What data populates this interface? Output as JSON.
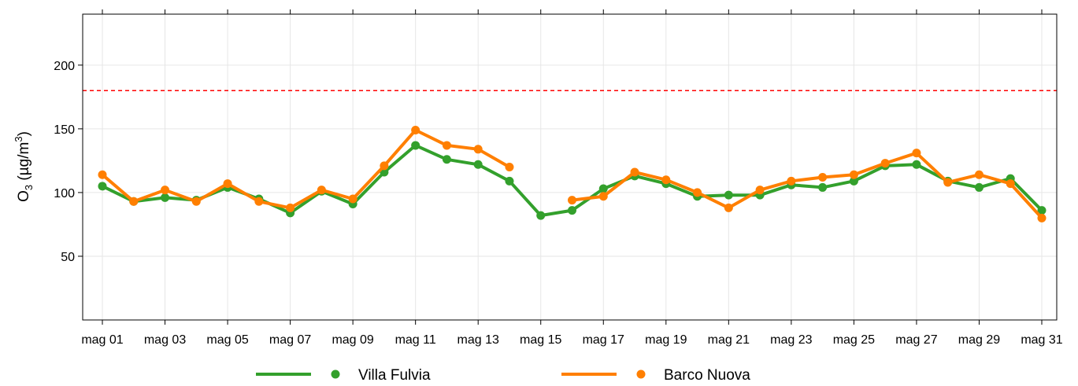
{
  "chart_data": {
    "type": "line",
    "ylabel": "O3 (µg/m3)",
    "ylabel_parts": {
      "main": "O",
      "sub": "3",
      "open": " (µg/m",
      "sup": "3",
      "close": ")"
    },
    "ylim": [
      0,
      240
    ],
    "yticks": [
      50,
      100,
      150,
      200
    ],
    "x": [
      "mag 01",
      "mag 02",
      "mag 03",
      "mag 04",
      "mag 05",
      "mag 06",
      "mag 07",
      "mag 08",
      "mag 09",
      "mag 10",
      "mag 11",
      "mag 12",
      "mag 13",
      "mag 14",
      "mag 15",
      "mag 16",
      "mag 17",
      "mag 18",
      "mag 19",
      "mag 20",
      "mag 21",
      "mag 22",
      "mag 23",
      "mag 24",
      "mag 25",
      "mag 26",
      "mag 27",
      "mag 28",
      "mag 29",
      "mag 30",
      "mag 31"
    ],
    "xtick_labels": [
      "mag 01",
      "mag 03",
      "mag 05",
      "mag 07",
      "mag 09",
      "mag 11",
      "mag 13",
      "mag 15",
      "mag 17",
      "mag 19",
      "mag 21",
      "mag 23",
      "mag 25",
      "mag 27",
      "mag 29",
      "mag 31"
    ],
    "threshold": {
      "value": 180,
      "color": "#ff0000",
      "style": "dashed"
    },
    "grid": true,
    "legend_position": "bottom",
    "series": [
      {
        "name": "Villa Fulvia",
        "color": "#33a02c",
        "values": [
          105,
          93,
          96,
          94,
          104,
          95,
          84,
          101,
          91,
          116,
          137,
          126,
          122,
          109,
          82,
          86,
          103,
          113,
          107,
          97,
          98,
          98,
          106,
          104,
          109,
          121,
          122,
          109,
          104,
          111,
          86
        ]
      },
      {
        "name": "Barco Nuova",
        "color": "#ff7f00",
        "values": [
          114,
          93,
          102,
          93,
          107,
          93,
          88,
          102,
          95,
          121,
          149,
          137,
          134,
          120,
          null,
          94,
          97,
          116,
          110,
          100,
          88,
          102,
          109,
          112,
          114,
          123,
          131,
          108,
          114,
          107,
          80
        ]
      }
    ]
  }
}
